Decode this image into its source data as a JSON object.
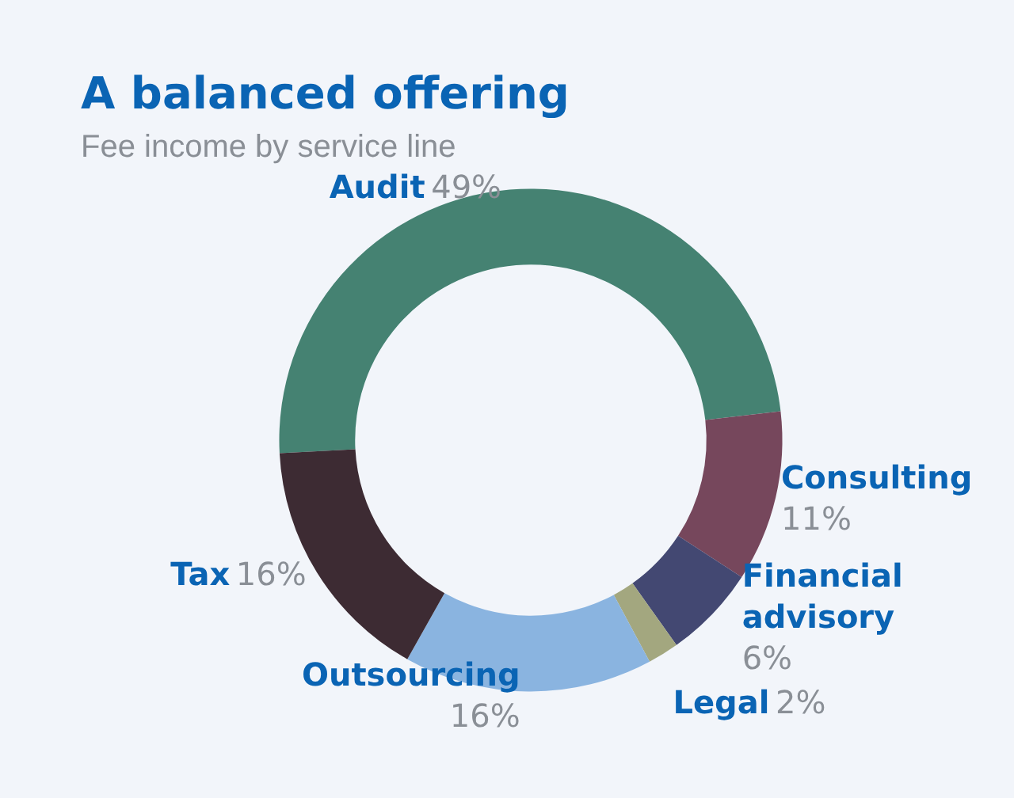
{
  "chart_data": {
    "type": "donut",
    "title": "A balanced offering",
    "subtitle": "Fee income by service line",
    "categories": [
      "Audit",
      "Consulting",
      "Financial advisory",
      "Legal",
      "Outsourcing",
      "Tax"
    ],
    "values": [
      49,
      11,
      6,
      2,
      16,
      16
    ],
    "value_labels": [
      "49%",
      "11%",
      "6%",
      "2%",
      "16%",
      "16%"
    ],
    "colors": [
      "#458272",
      "#76475c",
      "#434872",
      "#a3a77f",
      "#8ab4e0",
      "#3d2b33"
    ],
    "legend": false
  }
}
